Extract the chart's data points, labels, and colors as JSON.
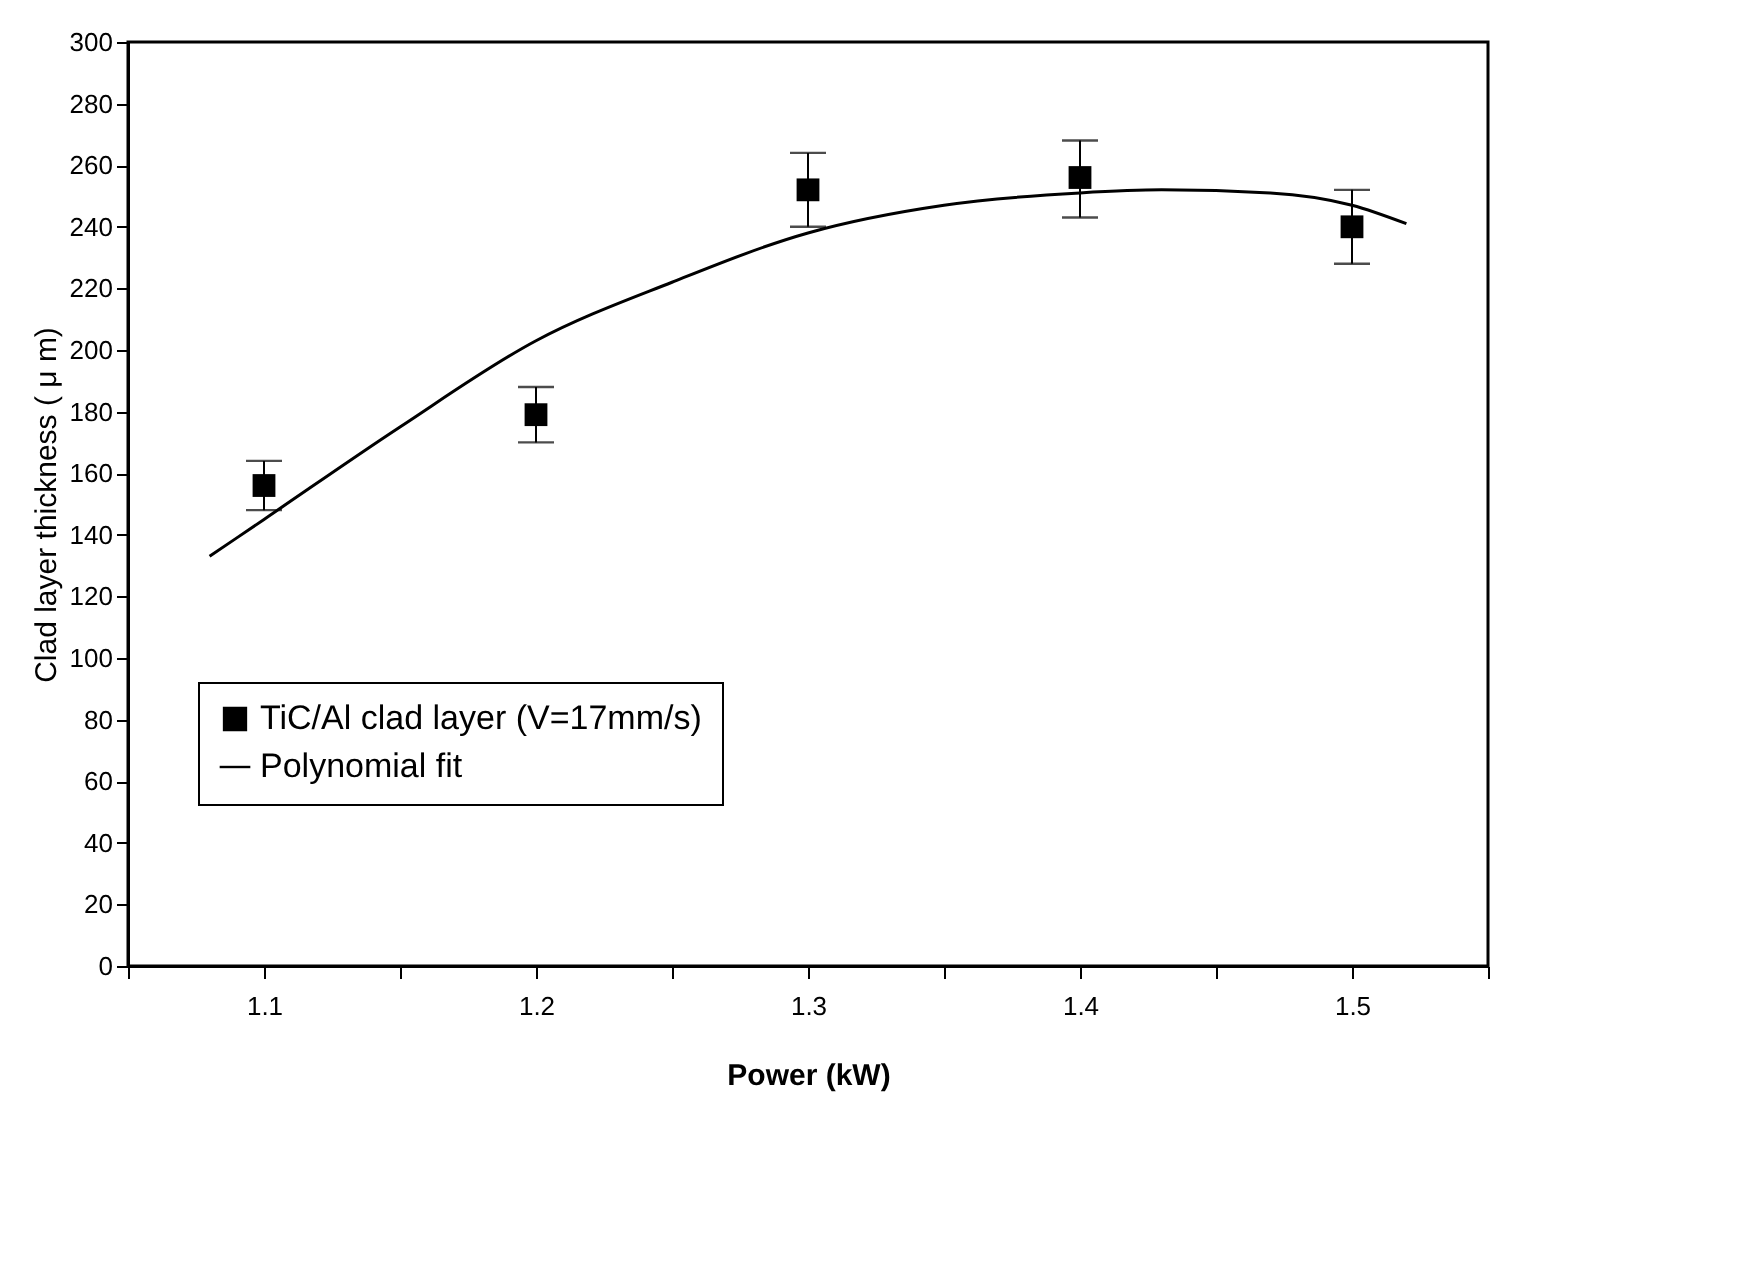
{
  "chart_data": {
    "type": "scatter",
    "xlabel": "Power (kW)",
    "ylabel": "Clad layer thickness ( μ m)",
    "xlim": [
      1.05,
      1.55
    ],
    "xticks": [
      {
        "value": 1.05,
        "label": null
      },
      1.1,
      {
        "value": 1.15,
        "label": null
      },
      1.2,
      {
        "value": 1.25,
        "label": null
      },
      1.3,
      {
        "value": 1.35,
        "label": null
      },
      1.4,
      {
        "value": 1.45,
        "label": null
      },
      1.5,
      {
        "value": 1.55,
        "label": null
      }
    ],
    "ylim": [
      0,
      300
    ],
    "yticks": [
      0,
      20,
      40,
      60,
      80,
      100,
      120,
      140,
      160,
      180,
      200,
      220,
      240,
      260,
      280,
      300
    ],
    "legend": "left",
    "grid": false,
    "series": [
      {
        "name": "TiC/Al clad layer (V=17mm/s)",
        "marker": "square",
        "color": "#000000",
        "x": [
          1.1,
          1.2,
          1.3,
          1.4,
          1.5
        ],
        "values": [
          156,
          179,
          252,
          256,
          240
        ],
        "errors": [
          [
            148,
            164
          ],
          [
            170,
            188
          ],
          [
            240,
            264
          ],
          [
            243,
            268
          ],
          [
            228,
            252
          ]
        ]
      },
      {
        "name": "Polynomial fit",
        "type": "line",
        "marker": "none",
        "line_style": "solid",
        "color": "#000000",
        "x": [
          1.08,
          1.1,
          1.15,
          1.2,
          1.25,
          1.3,
          1.35,
          1.4,
          1.43,
          1.47,
          1.5,
          1.52
        ],
        "values": [
          133,
          145,
          175,
          203,
          222,
          238,
          247,
          251,
          252,
          251,
          247,
          241
        ]
      }
    ]
  }
}
